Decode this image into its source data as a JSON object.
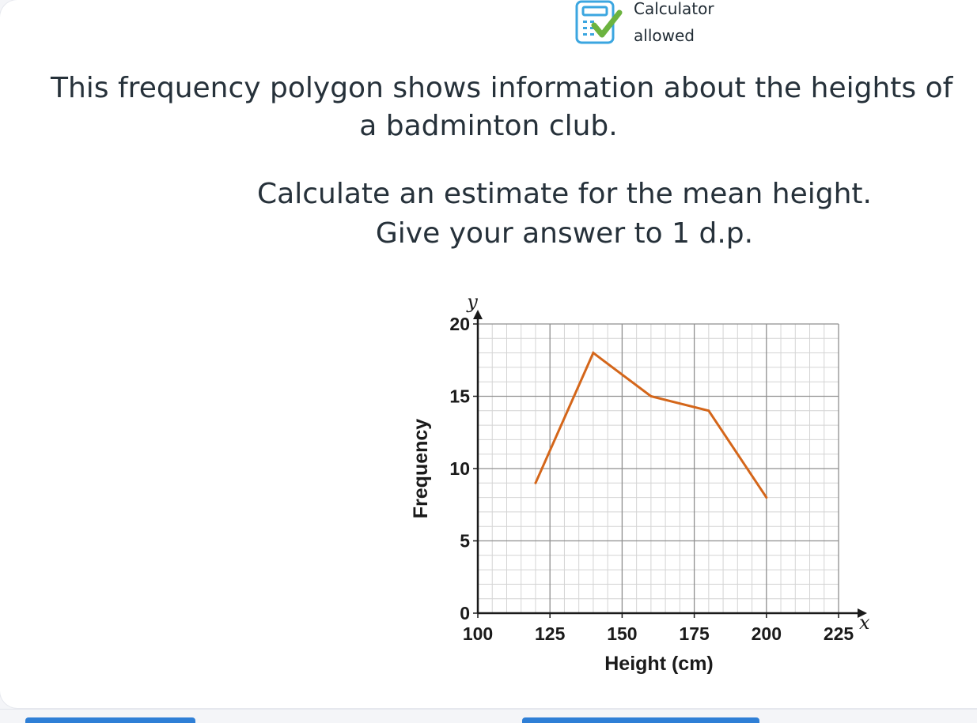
{
  "badge": {
    "line1": "Calculator",
    "line2": "allowed",
    "icon": "calculator-check-icon",
    "colors": {
      "calculator": "#3ba6e0",
      "check": "#6cb33f"
    }
  },
  "question": {
    "line1": "This frequency polygon shows information about the heights of",
    "line2": "a badminton club.",
    "line3": "Calculate an estimate for the mean height.",
    "line4": "Give your answer to 1 d.p."
  },
  "chart_data": {
    "type": "line",
    "x": [
      120,
      140,
      160,
      180,
      200
    ],
    "values": [
      9,
      18,
      15,
      14,
      8
    ],
    "xlabel": "Height (cm)",
    "ylabel": "Frequency",
    "x_axis_symbol": "x",
    "y_axis_symbol": "y",
    "xlim": [
      100,
      225
    ],
    "ylim": [
      0,
      20
    ],
    "x_ticks": [
      100,
      125,
      150,
      175,
      200,
      225
    ],
    "y_ticks": [
      0,
      5,
      10,
      15,
      20
    ],
    "x_minor_step": 5,
    "y_minor_step": 1,
    "grid": true,
    "line_color": "#d4661a"
  }
}
